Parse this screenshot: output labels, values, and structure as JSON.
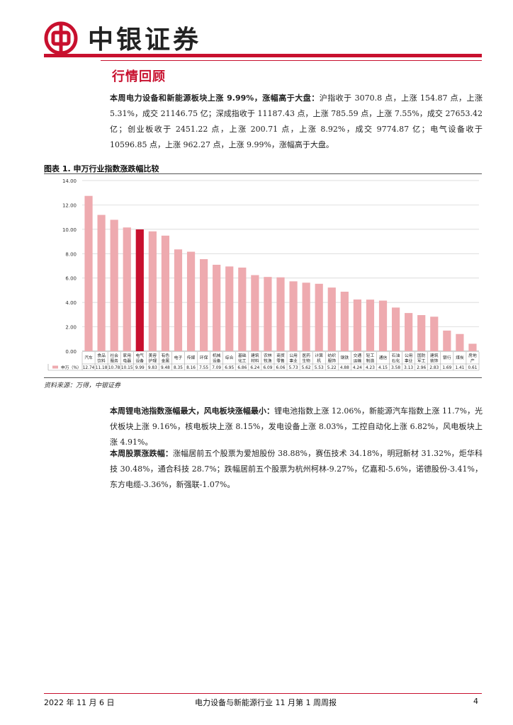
{
  "header": {
    "brand": "中银证券"
  },
  "section_title": "行情回顾",
  "para1": {
    "lead": "本周电力设备和新能源板块上涨 9.99%，涨幅高于大盘：",
    "body": "沪指收于 3070.8 点，上涨 154.87 点，上涨 5.31%，成交 21146.75 亿；深成指收于 11187.43 点，上涨 785.59 点，上涨 7.55%，成交 27653.42 亿；创业板收于 2451.22 点，上涨 200.71 点，上涨 8.92%，成交 9774.87 亿；电气设备收于 10596.85 点，上涨 962.27 点，上涨 9.99%，涨幅高于大盘。"
  },
  "figure": {
    "title": "图表 1. 申万行业指数涨跌幅比较",
    "source": "资料来源：万得，中银证券"
  },
  "chart_data": {
    "type": "bar",
    "categories": [
      "汽车",
      "食品饮料",
      "社会服务",
      "家用电器",
      "电气设备",
      "美容护理",
      "有色金属",
      "电子",
      "传媒",
      "环保",
      "机械设备",
      "综合",
      "基础化工",
      "建筑材料",
      "农林牧渔",
      "商贸零售",
      "公用事业",
      "医药生物",
      "计算机",
      "纺织服饰",
      "钢铁",
      "交通运输",
      "轻工制造",
      "通信",
      "石油石化",
      "公用事业",
      "国防军工",
      "建筑装饰",
      "银行",
      "煤炭",
      "房地产"
    ],
    "series": [
      {
        "name": "申万（%）",
        "values": [
          12.74,
          11.18,
          10.78,
          10.15,
          9.99,
          9.83,
          9.48,
          8.35,
          8.16,
          7.55,
          7.09,
          6.95,
          6.86,
          6.24,
          6.09,
          6.06,
          5.73,
          5.62,
          5.53,
          5.22,
          4.88,
          4.24,
          4.23,
          4.15,
          3.58,
          3.13,
          2.96,
          2.83,
          1.69,
          1.41,
          0.61
        ]
      }
    ],
    "value_labels": [
      "12.74",
      "11.18",
      "10.78",
      "10.15",
      "9.99",
      "9.83",
      "9.48",
      "8.35",
      "8.16",
      "7.55",
      "7.09",
      "6.95",
      "6.86",
      "6.24",
      "6.09",
      "6.06",
      "5.73",
      "5.62",
      "5.53",
      "5.22",
      "4.88",
      "4.24",
      "4.23",
      "4.15",
      "3.58",
      "3.13",
      "2.96",
      "2.83",
      "1.69",
      "1.41",
      "0.61"
    ],
    "highlight_index": 4,
    "yticks": [
      "0.00",
      "2.00",
      "4.00",
      "6.00",
      "8.00",
      "10.00",
      "12.00",
      "14.00"
    ],
    "ylim": [
      0,
      14
    ],
    "grid": true,
    "colors": {
      "bar": "#eeaaaf",
      "highlight": "#c8102e"
    }
  },
  "para2": {
    "lead": "本周锂电池指数涨幅最大，风电板块涨幅最小：",
    "body": "锂电池指数上涨 12.06%，新能源汽车指数上涨 11.7%，光伏板块上涨 9.16%，核电板块上涨 8.15%，发电设备上涨 8.03%，工控自动化上涨 6.82%，风电板块上涨 4.91%。"
  },
  "para3": {
    "lead": "本周股票涨跌幅：",
    "body": "涨幅居前五个股票为爱旭股份 38.88%，赛伍技术 34.18%，明冠新材 31.32%，炬华科技 30.48%，通合科技 28.7%；跌幅居前五个股票为杭州柯林-9.27%，亿嘉和-5.6%，诺德股份-3.41%，东方电缆-3.36%，新强联-1.07%。"
  },
  "footer": {
    "date": "2022 年 11 月 6 日",
    "title": "电力设备与新能源行业 11 月第 1 周周报",
    "page": "4"
  },
  "colors": {
    "brand_red": "#c8102e"
  }
}
